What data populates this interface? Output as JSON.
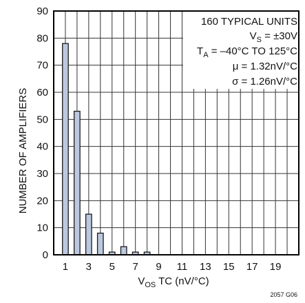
{
  "chart_data": {
    "type": "bar",
    "x": [
      1,
      2,
      3,
      4,
      5,
      6,
      7,
      8
    ],
    "values": [
      78,
      53,
      15,
      8,
      1,
      3,
      1,
      1
    ],
    "xlim": [
      0,
      21
    ],
    "ylim": [
      0,
      90
    ],
    "x_ticks": [
      "1",
      "3",
      "5",
      "7",
      "9",
      "11",
      "13",
      "15",
      "17",
      "19"
    ],
    "y_ticks": [
      "0",
      "10",
      "20",
      "30",
      "40",
      "50",
      "60",
      "70",
      "80",
      "90"
    ],
    "xlabel": {
      "main": "V",
      "sub": "OS",
      "rest": " TC (nV/°C)"
    },
    "ylabel": "NUMBER OF AMPLIFIERS",
    "grid": true,
    "bar_color": "#bcc8e0",
    "annotations": {
      "line1": "160 TYPICAL UNITS",
      "line2": {
        "main": "V",
        "sub": "S",
        "rest": " = ±30V"
      },
      "line3": {
        "main": "T",
        "sub": "A",
        "rest": " = –40°C TO 125°C"
      },
      "line4": "μ = 1.32nV/°C",
      "line5": "σ = 1.26nV/°C",
      "placement": "top-right"
    },
    "figure_id": "2057 G06"
  }
}
